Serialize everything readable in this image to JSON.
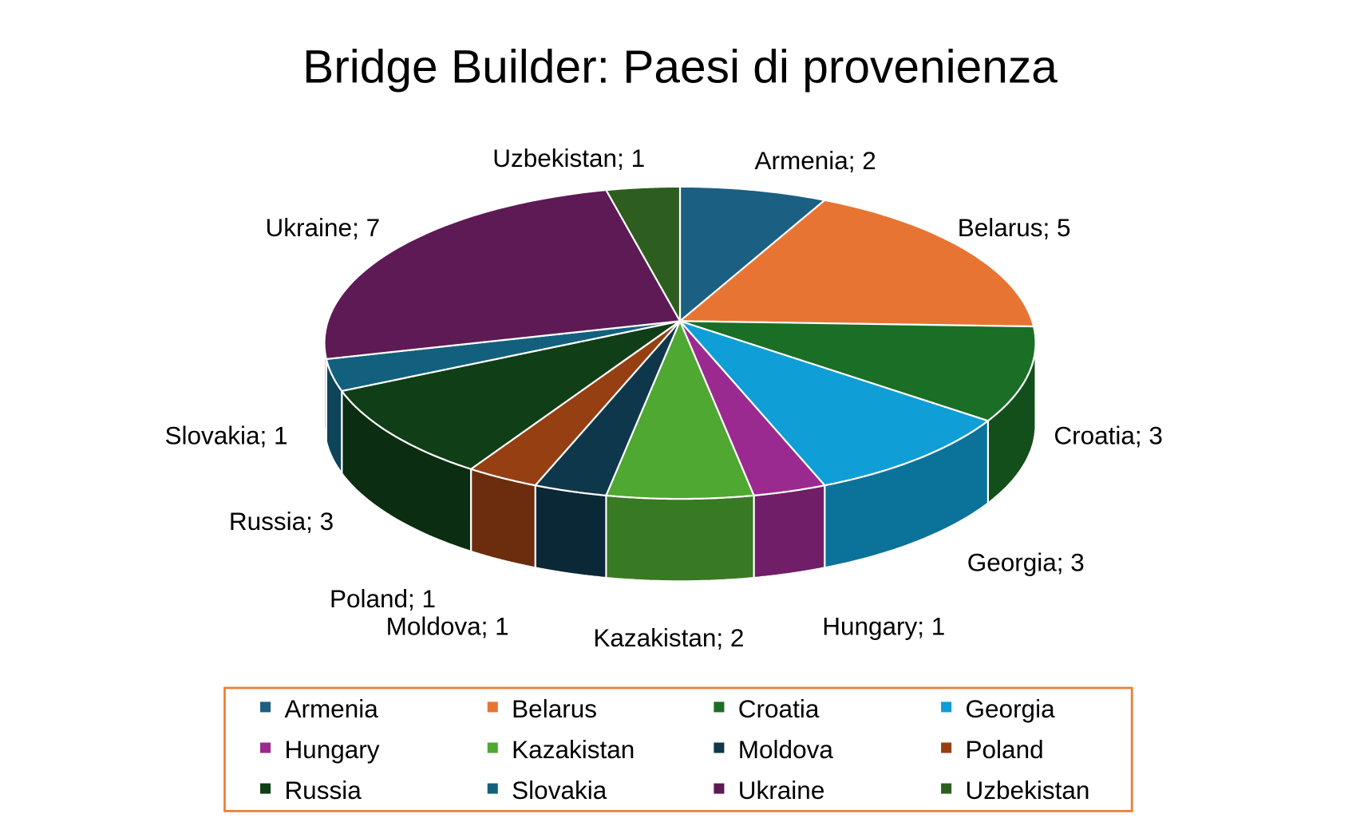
{
  "chart_data": {
    "type": "pie",
    "title": "Bridge Builder: Paesi di provenienza",
    "style": "3d-pie",
    "categories": [
      "Armenia",
      "Belarus",
      "Croatia",
      "Georgia",
      "Hungary",
      "Kazakistan",
      "Moldova",
      "Poland",
      "Russia",
      "Slovakia",
      "Ukraine",
      "Uzbekistan"
    ],
    "values": [
      2,
      5,
      3,
      3,
      1,
      2,
      1,
      1,
      3,
      1,
      7,
      1
    ],
    "data_labels": [
      "Armenia; 2",
      "Belarus; 5",
      "Croatia; 3",
      "Georgia; 3",
      "Hungary; 1",
      "Kazakistan; 2",
      "Moldova; 1",
      "Poland; 1",
      "Russia; 3",
      "Slovakia; 1",
      "Ukraine; 7",
      "Uzbekistan; 1"
    ],
    "colors": [
      "#1b5f82",
      "#e87433",
      "#1b6e25",
      "#0f9ed6",
      "#9b2a90",
      "#4ea832",
      "#0f374c",
      "#953f12",
      "#0f3e17",
      "#13607e",
      "#5e1a55",
      "#2d5e1f"
    ],
    "legend_position": "bottom",
    "legend_border_color": "#ed7d31"
  }
}
